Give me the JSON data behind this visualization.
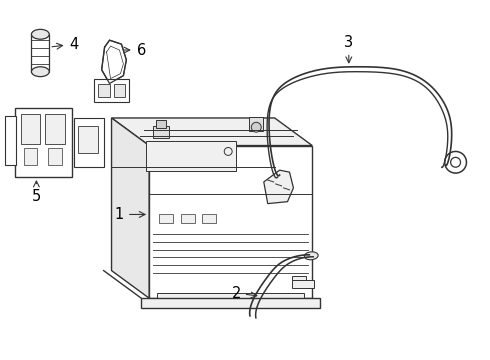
{
  "bg_color": "#ffffff",
  "line_color": "#333333",
  "label_color": "#000000",
  "lw_main": 1.0,
  "lw_thin": 0.7,
  "figsize": [
    4.9,
    3.6
  ],
  "dpi": 100
}
